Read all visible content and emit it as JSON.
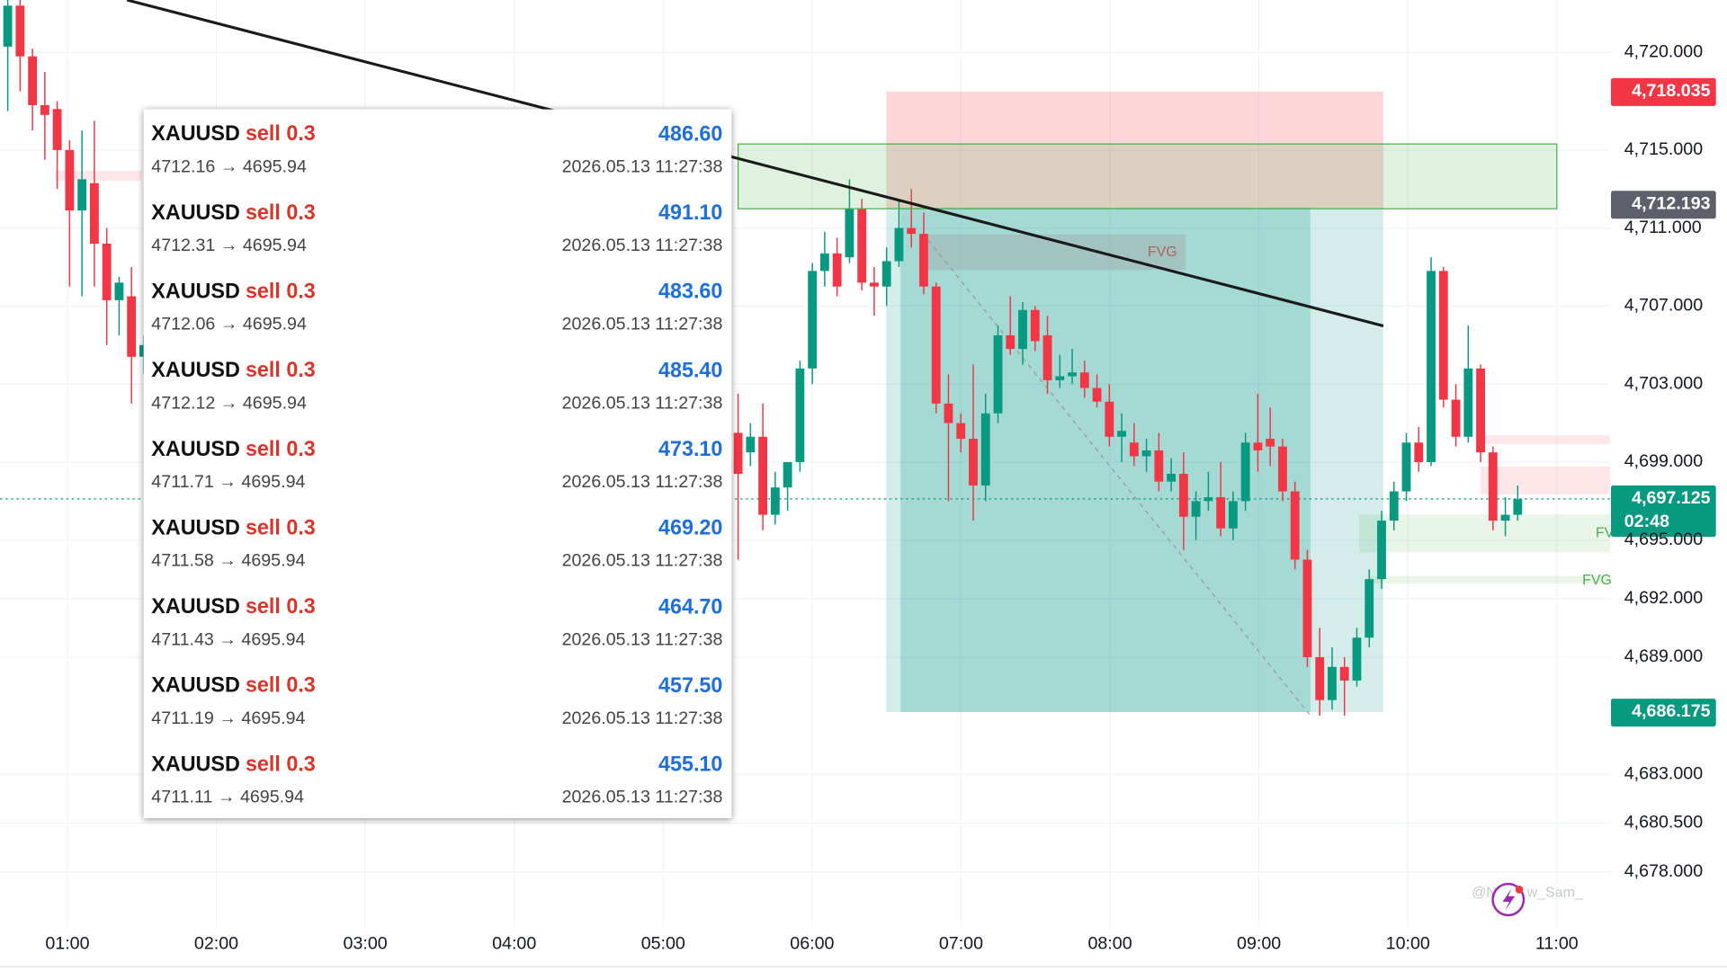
{
  "chart_data": {
    "type": "candlestick",
    "categories": [
      "01:00",
      "02:00",
      "03:00",
      "04:00",
      "05:00",
      "06:00",
      "07:00",
      "08:00",
      "09:00",
      "10:00",
      "11:00"
    ],
    "ylim": [
      4675.2,
      4722.69
    ],
    "yticks": [
      {
        "value": 4720,
        "label": "4,720.000"
      },
      {
        "value": 4715,
        "label": "4,715.000"
      },
      {
        "value": 4711,
        "label": "4,711.000"
      },
      {
        "value": 4707,
        "label": "4,707.000"
      },
      {
        "value": 4703,
        "label": "4,703.000"
      },
      {
        "value": 4699,
        "label": "4,699.000"
      },
      {
        "value": 4695,
        "label": "4,695.000"
      },
      {
        "value": 4692,
        "label": "4,692.000"
      },
      {
        "value": 4689,
        "label": "4,689.000"
      },
      {
        "value": 4683,
        "label": "4,683.000"
      },
      {
        "value": 4680.5,
        "label": "4,680.500"
      },
      {
        "value": 4678,
        "label": "4,678.000"
      }
    ],
    "grid": true,
    "colors": {
      "up": "#089981",
      "down": "#f23645"
    },
    "candles_left": [
      {
        "o": 4720.3,
        "h": 4722.7,
        "l": 4717.0,
        "c": 4722.4
      },
      {
        "o": 4722.4,
        "h": 4722.7,
        "l": 4718.0,
        "c": 4719.8
      },
      {
        "o": 4719.8,
        "h": 4720.2,
        "l": 4716.0,
        "c": 4717.3
      },
      {
        "o": 4717.3,
        "h": 4719.0,
        "l": 4714.5,
        "c": 4716.8
      },
      {
        "o": 4717.1,
        "h": 4717.5,
        "l": 4713.0,
        "c": 4715.0
      },
      {
        "o": 4715.0,
        "h": 4715.5,
        "l": 4708.0,
        "c": 4711.9
      },
      {
        "o": 4711.9,
        "h": 4716.0,
        "l": 4707.5,
        "c": 4713.5
      },
      {
        "o": 4713.3,
        "h": 4716.5,
        "l": 4708.0,
        "c": 4710.2
      },
      {
        "o": 4710.2,
        "h": 4711.0,
        "l": 4705.0,
        "c": 4707.3
      },
      {
        "o": 4707.3,
        "h": 4708.5,
        "l": 4705.5,
        "c": 4708.2
      },
      {
        "o": 4707.5,
        "h": 4709.0,
        "l": 4702.0,
        "c": 4704.4
      },
      {
        "o": 4704.4,
        "h": 4705.5,
        "l": 4703.5,
        "c": 4705.0
      }
    ],
    "candles_right": [
      {
        "o": 4700.5,
        "h": 4702.5,
        "l": 4694.0,
        "c": 4698.4
      },
      {
        "o": 4699.5,
        "h": 4701.0,
        "l": 4698.8,
        "c": 4700.3
      },
      {
        "o": 4700.3,
        "h": 4702.0,
        "l": 4695.5,
        "c": 4696.3
      },
      {
        "o": 4696.3,
        "h": 4698.5,
        "l": 4695.8,
        "c": 4697.7
      },
      {
        "o": 4697.7,
        "h": 4699.0,
        "l": 4696.5,
        "c": 4699.0
      },
      {
        "o": 4699.0,
        "h": 4704.2,
        "l": 4698.5,
        "c": 4703.8
      },
      {
        "o": 4703.8,
        "h": 4709.2,
        "l": 4703.0,
        "c": 4708.8
      },
      {
        "o": 4708.8,
        "h": 4710.8,
        "l": 4708.0,
        "c": 4709.7
      },
      {
        "o": 4709.7,
        "h": 4710.5,
        "l": 4707.5,
        "c": 4708.0
      },
      {
        "o": 4709.5,
        "h": 4713.5,
        "l": 4709.2,
        "c": 4712.0
      },
      {
        "o": 4712.0,
        "h": 4712.5,
        "l": 4707.8,
        "c": 4708.2
      },
      {
        "o": 4708.2,
        "h": 4709.0,
        "l": 4706.5,
        "c": 4708.0
      },
      {
        "o": 4708.0,
        "h": 4710.0,
        "l": 4707.0,
        "c": 4709.3
      },
      {
        "o": 4709.3,
        "h": 4712.5,
        "l": 4709.0,
        "c": 4711.0
      },
      {
        "o": 4711.0,
        "h": 4713.0,
        "l": 4710.0,
        "c": 4710.7
      },
      {
        "o": 4710.7,
        "h": 4711.8,
        "l": 4707.6,
        "c": 4708.0
      },
      {
        "o": 4708.0,
        "h": 4708.2,
        "l": 4701.5,
        "c": 4702.0
      },
      {
        "o": 4702.0,
        "h": 4703.5,
        "l": 4697.0,
        "c": 4701.0
      },
      {
        "o": 4701.0,
        "h": 4701.5,
        "l": 4699.5,
        "c": 4700.2
      },
      {
        "o": 4700.2,
        "h": 4704.0,
        "l": 4696.0,
        "c": 4697.8
      },
      {
        "o": 4697.8,
        "h": 4702.5,
        "l": 4697.0,
        "c": 4701.5
      },
      {
        "o": 4701.5,
        "h": 4706.0,
        "l": 4701.0,
        "c": 4705.5
      },
      {
        "o": 4705.5,
        "h": 4707.5,
        "l": 4704.5,
        "c": 4704.8
      },
      {
        "o": 4704.8,
        "h": 4707.2,
        "l": 4704.0,
        "c": 4706.8
      },
      {
        "o": 4706.8,
        "h": 4707.0,
        "l": 4704.7,
        "c": 4705.2
      },
      {
        "o": 4705.5,
        "h": 4706.5,
        "l": 4702.5,
        "c": 4703.2
      },
      {
        "o": 4703.2,
        "h": 4704.5,
        "l": 4702.8,
        "c": 4703.4
      },
      {
        "o": 4703.4,
        "h": 4704.8,
        "l": 4703.0,
        "c": 4703.6
      },
      {
        "o": 4703.6,
        "h": 4704.2,
        "l": 4702.3,
        "c": 4702.8
      },
      {
        "o": 4702.8,
        "h": 4703.5,
        "l": 4701.8,
        "c": 4702.1
      },
      {
        "o": 4702.1,
        "h": 4703.0,
        "l": 4699.8,
        "c": 4700.3
      },
      {
        "o": 4700.3,
        "h": 4701.5,
        "l": 4699.0,
        "c": 4700.6
      },
      {
        "o": 4700.0,
        "h": 4701.0,
        "l": 4698.8,
        "c": 4699.3
      },
      {
        "o": 4699.3,
        "h": 4700.2,
        "l": 4698.5,
        "c": 4699.6
      },
      {
        "o": 4699.6,
        "h": 4700.5,
        "l": 4697.5,
        "c": 4698.0
      },
      {
        "o": 4698.0,
        "h": 4699.2,
        "l": 4697.5,
        "c": 4698.4
      },
      {
        "o": 4698.4,
        "h": 4699.5,
        "l": 4694.5,
        "c": 4696.2
      },
      {
        "o": 4696.2,
        "h": 4697.5,
        "l": 4695.0,
        "c": 4697.0
      },
      {
        "o": 4697.0,
        "h": 4698.5,
        "l": 4696.5,
        "c": 4697.2
      },
      {
        "o": 4697.2,
        "h": 4699.0,
        "l": 4695.2,
        "c": 4695.6
      },
      {
        "o": 4695.6,
        "h": 4697.5,
        "l": 4695.0,
        "c": 4697.0
      },
      {
        "o": 4697.0,
        "h": 4700.5,
        "l": 4696.5,
        "c": 4700.0
      },
      {
        "o": 4700.0,
        "h": 4702.5,
        "l": 4698.5,
        "c": 4699.6
      },
      {
        "o": 4700.2,
        "h": 4701.8,
        "l": 4698.8,
        "c": 4699.8
      },
      {
        "o": 4699.8,
        "h": 4700.2,
        "l": 4697.0,
        "c": 4697.5
      },
      {
        "o": 4697.5,
        "h": 4698.0,
        "l": 4693.5,
        "c": 4694.0
      },
      {
        "o": 4694.0,
        "h": 4694.5,
        "l": 4688.5,
        "c": 4689.0
      },
      {
        "o": 4689.0,
        "h": 4690.5,
        "l": 4686.0,
        "c": 4686.8
      },
      {
        "o": 4686.8,
        "h": 4689.5,
        "l": 4686.3,
        "c": 4688.5
      },
      {
        "o": 4688.5,
        "h": 4689.0,
        "l": 4686.0,
        "c": 4687.8
      },
      {
        "o": 4687.8,
        "h": 4690.5,
        "l": 4687.5,
        "c": 4690.0
      },
      {
        "o": 4690.0,
        "h": 4693.5,
        "l": 4689.5,
        "c": 4693.0
      },
      {
        "o": 4693.0,
        "h": 4696.5,
        "l": 4692.5,
        "c": 4696.0
      },
      {
        "o": 4696.0,
        "h": 4698.0,
        "l": 4695.5,
        "c": 4697.5
      },
      {
        "o": 4697.5,
        "h": 4700.5,
        "l": 4697.0,
        "c": 4700.0
      },
      {
        "o": 4700.0,
        "h": 4700.8,
        "l": 4698.5,
        "c": 4699.0
      },
      {
        "o": 4699.0,
        "h": 4709.5,
        "l": 4698.8,
        "c": 4708.8
      },
      {
        "o": 4708.8,
        "h": 4709.0,
        "l": 4701.8,
        "c": 4702.2
      },
      {
        "o": 4702.2,
        "h": 4703.0,
        "l": 4699.8,
        "c": 4700.3
      },
      {
        "o": 4700.3,
        "h": 4706.0,
        "l": 4700.0,
        "c": 4703.8
      },
      {
        "o": 4703.8,
        "h": 4704.0,
        "l": 4699.0,
        "c": 4699.5
      },
      {
        "o": 4699.5,
        "h": 4699.8,
        "l": 4695.5,
        "c": 4696.0
      },
      {
        "o": 4696.0,
        "h": 4697.2,
        "l": 4695.2,
        "c": 4696.3
      },
      {
        "o": 4696.3,
        "h": 4697.8,
        "l": 4696.0,
        "c": 4697.1
      }
    ],
    "price_labels": [
      "4,718.035",
      "4,712.193",
      "4,697.125",
      "02:48",
      "4,686.175"
    ],
    "annotations": [
      "FVG",
      "FV",
      "FVG"
    ],
    "watermark": [
      "@N",
      "w_Sam_"
    ]
  },
  "trades_panel": {
    "rows": [
      {
        "symbol": "XAUUSD",
        "side": "sell 0.3",
        "route": "4712.16 → 4695.94",
        "profit": "486.60",
        "time": "2026.05.13 11:27:38"
      },
      {
        "symbol": "XAUUSD",
        "side": "sell 0.3",
        "route": "4712.31 → 4695.94",
        "profit": "491.10",
        "time": "2026.05.13 11:27:38"
      },
      {
        "symbol": "XAUUSD",
        "side": "sell 0.3",
        "route": "4712.06 → 4695.94",
        "profit": "483.60",
        "time": "2026.05.13 11:27:38"
      },
      {
        "symbol": "XAUUSD",
        "side": "sell 0.3",
        "route": "4712.12 → 4695.94",
        "profit": "485.40",
        "time": "2026.05.13 11:27:38"
      },
      {
        "symbol": "XAUUSD",
        "side": "sell 0.3",
        "route": "4711.71 → 4695.94",
        "profit": "473.10",
        "time": "2026.05.13 11:27:38"
      },
      {
        "symbol": "XAUUSD",
        "side": "sell 0.3",
        "route": "4711.58 → 4695.94",
        "profit": "469.20",
        "time": "2026.05.13 11:27:38"
      },
      {
        "symbol": "XAUUSD",
        "side": "sell 0.3",
        "route": "4711.43 → 4695.94",
        "profit": "464.70",
        "time": "2026.05.13 11:27:38"
      },
      {
        "symbol": "XAUUSD",
        "side": "sell 0.3",
        "route": "4711.19 → 4695.94",
        "profit": "457.50",
        "time": "2026.05.13 11:27:38"
      },
      {
        "symbol": "XAUUSD",
        "side": "sell 0.3",
        "route": "4711.11 → 4695.94",
        "profit": "455.10",
        "time": "2026.05.13 11:27:38"
      }
    ]
  }
}
